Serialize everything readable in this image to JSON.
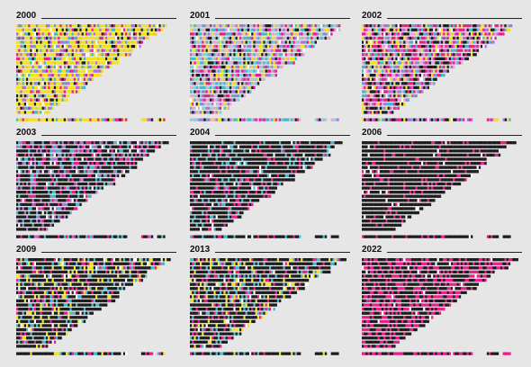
{
  "chart_data": {
    "type": "heatmap",
    "panels": [
      {
        "title": "2000",
        "palette": [
          "#f2e21a",
          "#f2e21a",
          "#f2e21a",
          "#f2e21a",
          "#f2e21a",
          "#e8d11c",
          "#49b7c9",
          "#b46fd6",
          "#e91e8c",
          "#1c1c1c"
        ],
        "rows": 23,
        "triangular": true
      },
      {
        "title": "2001",
        "palette": [
          "#49b7c9",
          "#b46fd6",
          "#e91e8c",
          "#f2e21a",
          "#e8a6d6",
          "#7fd0e0",
          "#1c1c1c",
          "#c1c1c1"
        ],
        "rows": 23,
        "triangular": true
      },
      {
        "title": "2002",
        "palette": [
          "#e91e8c",
          "#e91e8c",
          "#b46fd6",
          "#1c1c1c",
          "#1c1c1c",
          "#49b7c9",
          "#f2e21a",
          "#e8a6d6"
        ],
        "rows": 23,
        "triangular": true
      },
      {
        "title": "2003",
        "palette": [
          "#1c1c1c",
          "#1c1c1c",
          "#1c1c1c",
          "#1c1c1c",
          "#1c1c1c",
          "#e91e8c",
          "#b46fd6",
          "#49b7c9"
        ],
        "rows": 23,
        "triangular": true
      },
      {
        "title": "2004",
        "palette": [
          "#1c1c1c",
          "#1c1c1c",
          "#1c1c1c",
          "#1c1c1c",
          "#1c1c1c",
          "#1c1c1c",
          "#e91e8c",
          "#49b7c9"
        ],
        "rows": 23,
        "triangular": true
      },
      {
        "title": "2006",
        "palette": [
          "#1c1c1c",
          "#1c1c1c",
          "#1c1c1c",
          "#1c1c1c",
          "#1c1c1c",
          "#1c1c1c",
          "#1c1c1c",
          "#e91e8c"
        ],
        "rows": 23,
        "triangular": true
      },
      {
        "title": "2009",
        "palette": [
          "#1c1c1c",
          "#1c1c1c",
          "#1c1c1c",
          "#1c1c1c",
          "#1c1c1c",
          "#1c1c1c",
          "#e91e8c",
          "#49b7c9",
          "#f2e21a"
        ],
        "rows": 23,
        "triangular": true
      },
      {
        "title": "2013",
        "palette": [
          "#1c1c1c",
          "#1c1c1c",
          "#1c1c1c",
          "#1c1c1c",
          "#1c1c1c",
          "#1c1c1c",
          "#e91e8c",
          "#f2e21a",
          "#49b7c9"
        ],
        "rows": 23,
        "triangular": true
      },
      {
        "title": "2022",
        "palette": [
          "#1c1c1c",
          "#1c1c1c",
          "#1c1c1c",
          "#1c1c1c",
          "#e91e8c",
          "#e91e8c",
          "#e91e8c"
        ],
        "rows": 23,
        "triangular": true
      }
    ],
    "xlabel": "",
    "ylabel": "",
    "grid": false,
    "legend": "none"
  }
}
